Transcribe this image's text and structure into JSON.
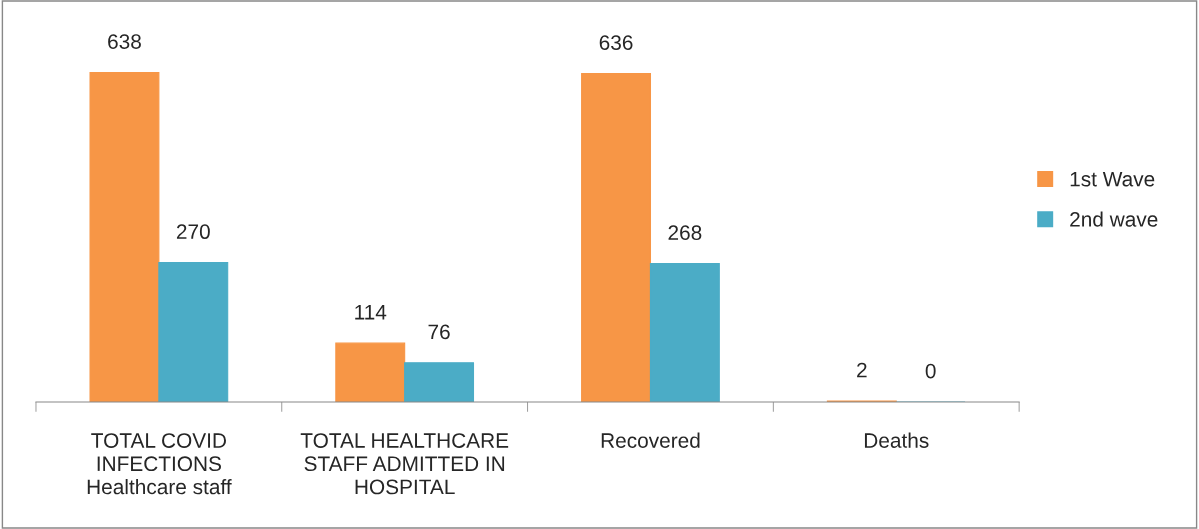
{
  "chart_data": {
    "type": "bar",
    "categories": [
      "TOTAL COVID\nINFECTIONS\nHealthcare staff",
      "TOTAL HEALTHCARE\nSTAFF ADMITTED IN\nHOSPITAL",
      "Recovered",
      "Deaths"
    ],
    "series": [
      {
        "name": "1st Wave",
        "color": "#f79646",
        "values": [
          638,
          114,
          636,
          2
        ]
      },
      {
        "name": "2nd wave",
        "color": "#4bacc6",
        "values": [
          270,
          76,
          268,
          0
        ]
      }
    ],
    "data_labels": true,
    "legend": "right",
    "grid": false
  }
}
